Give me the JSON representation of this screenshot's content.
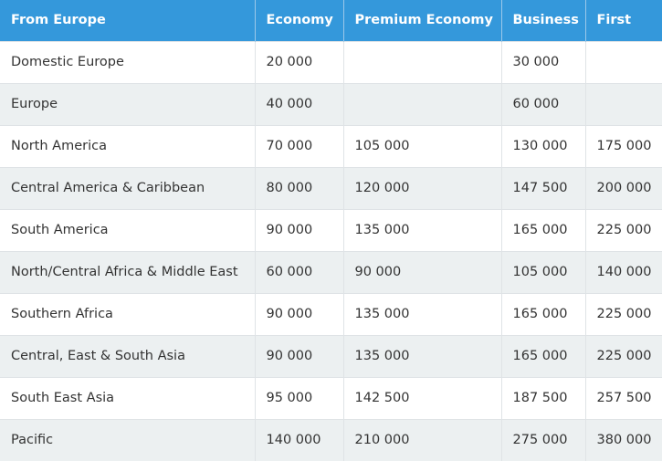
{
  "table": {
    "headers": [
      "From Europe",
      "Economy",
      "Premium Economy",
      "Business",
      "First"
    ],
    "rows": [
      [
        "Domestic Europe",
        "20 000",
        "",
        "30 000",
        ""
      ],
      [
        "Europe",
        "40 000",
        "",
        "60 000",
        ""
      ],
      [
        "North America",
        "70 000",
        "105 000",
        "130 000",
        "175 000"
      ],
      [
        "Central America & Caribbean",
        "80 000",
        "120 000",
        "147 500",
        "200 000"
      ],
      [
        "South America",
        "90 000",
        "135 000",
        "165 000",
        "225 000"
      ],
      [
        "North/Central Africa & Middle East",
        "60 000",
        "90 000",
        "105 000",
        "140 000"
      ],
      [
        "Southern Africa",
        "90 000",
        "135 000",
        "165 000",
        "225 000"
      ],
      [
        "Central, East & South Asia",
        "90 000",
        "135 000",
        "165 000",
        "225 000"
      ],
      [
        "South East Asia",
        "95 000",
        "142 500",
        "187 500",
        "257 500"
      ],
      [
        "Pacific",
        "140 000",
        "210 000",
        "275 000",
        "380 000"
      ]
    ]
  },
  "colors": {
    "header_bg": "#3498db",
    "header_text": "#ffffff",
    "stripe_bg": "#ecf0f1",
    "body_text": "#333333"
  }
}
